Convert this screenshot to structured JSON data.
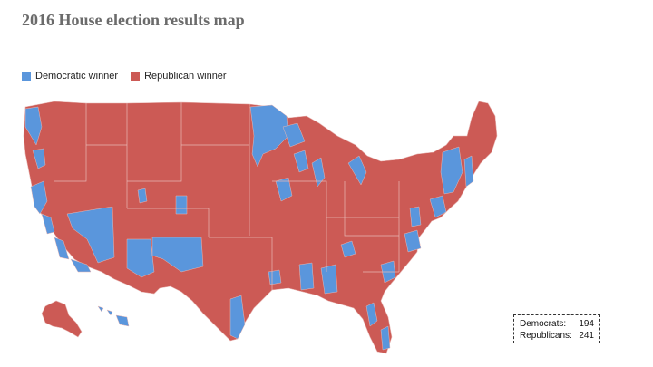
{
  "title": "2016 House election results map",
  "legend": {
    "items": [
      {
        "label": "Democratic winner",
        "color": "#5a96dc"
      },
      {
        "label": "Republican winner",
        "color": "#cc5a55"
      }
    ]
  },
  "totals": {
    "democrats_label": "Democrats:",
    "democrats_value": "194",
    "republicans_label": "Republicans:",
    "republicans_value": "241"
  },
  "colors": {
    "democratic": "#5a96dc",
    "republican": "#cc5a55",
    "boundary": "#e8b8b5"
  }
}
